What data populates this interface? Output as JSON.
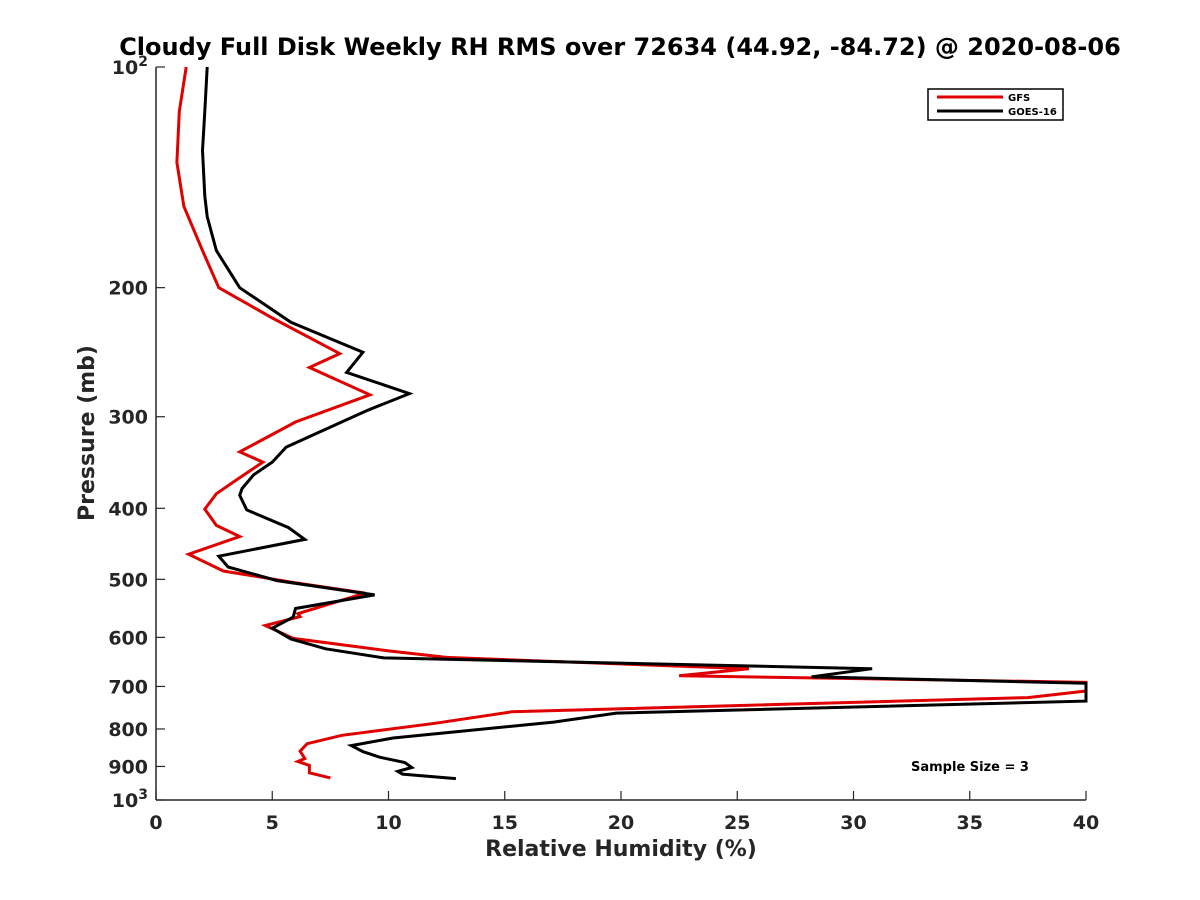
{
  "chart_data": {
    "type": "line",
    "title": "Cloudy Full Disk Weekly RH RMS over 72634 (44.92, -84.72) @ 2020-08-06",
    "xlabel": "Relative Humidity (%)",
    "ylabel": "Pressure (mb)",
    "xlim": [
      0,
      40
    ],
    "ylim": [
      100,
      1000
    ],
    "yscale": "log",
    "y_reversed": true,
    "grid": false,
    "legend_position": "top-right",
    "x_ticks": [
      "0",
      "5",
      "10",
      "15",
      "20",
      "25",
      "30",
      "35",
      "40"
    ],
    "y_ticks": [
      {
        "value": 100,
        "base": "10",
        "exp": "2"
      },
      {
        "value": 200,
        "label": "200"
      },
      {
        "value": 300,
        "label": "300"
      },
      {
        "value": 400,
        "label": "400"
      },
      {
        "value": 500,
        "label": "500"
      },
      {
        "value": 600,
        "label": "600"
      },
      {
        "value": 700,
        "label": "700"
      },
      {
        "value": 800,
        "label": "800"
      },
      {
        "value": 900,
        "label": "900"
      },
      {
        "value": 1000,
        "base": "10",
        "exp": "3"
      }
    ],
    "series": [
      {
        "name": "GFS",
        "color": "#e00000",
        "points": [
          [
            1.3,
            100
          ],
          [
            1.0,
            115
          ],
          [
            0.9,
            135
          ],
          [
            1.2,
            155
          ],
          [
            2.0,
            178
          ],
          [
            2.7,
            200
          ],
          [
            5.0,
            220
          ],
          [
            7.9,
            246
          ],
          [
            6.6,
            257
          ],
          [
            9.2,
            280
          ],
          [
            6.0,
            305
          ],
          [
            3.6,
            335
          ],
          [
            4.6,
            346
          ],
          [
            3.5,
            365
          ],
          [
            2.6,
            382
          ],
          [
            2.1,
            401
          ],
          [
            2.6,
            422
          ],
          [
            3.6,
            437
          ],
          [
            1.4,
            462
          ],
          [
            2.9,
            487
          ],
          [
            5.9,
            505
          ],
          [
            9.0,
            522
          ],
          [
            6.1,
            557
          ],
          [
            6.2,
            562
          ],
          [
            4.7,
            578
          ],
          [
            5.9,
            602
          ],
          [
            10.0,
            626
          ],
          [
            12.5,
            639
          ],
          [
            25.5,
            662
          ],
          [
            22.5,
            677
          ],
          [
            40.0,
            691
          ],
          [
            40.0,
            710
          ],
          [
            37.5,
            725
          ],
          [
            15.3,
            758
          ],
          [
            12.0,
            786
          ],
          [
            8.0,
            816
          ],
          [
            6.5,
            838
          ],
          [
            6.2,
            858
          ],
          [
            6.4,
            878
          ],
          [
            6.1,
            886
          ],
          [
            6.6,
            897
          ],
          [
            6.6,
            918
          ],
          [
            7.5,
            933
          ]
        ]
      },
      {
        "name": "GOES-16",
        "color": "#000000",
        "points": [
          [
            2.2,
            100
          ],
          [
            2.1,
            115
          ],
          [
            2.0,
            130
          ],
          [
            2.1,
            150
          ],
          [
            2.2,
            160
          ],
          [
            2.6,
            178
          ],
          [
            3.6,
            200
          ],
          [
            5.8,
            223
          ],
          [
            8.9,
            245
          ],
          [
            8.2,
            261
          ],
          [
            10.9,
            279
          ],
          [
            9.1,
            294
          ],
          [
            5.6,
            330
          ],
          [
            5.0,
            346
          ],
          [
            4.2,
            360
          ],
          [
            3.7,
            376
          ],
          [
            3.6,
            384
          ],
          [
            3.9,
            402
          ],
          [
            5.7,
            425
          ],
          [
            6.4,
            441
          ],
          [
            2.7,
            465
          ],
          [
            3.1,
            481
          ],
          [
            5.2,
            502
          ],
          [
            9.4,
            525
          ],
          [
            6.0,
            548
          ],
          [
            5.9,
            563
          ],
          [
            5.0,
            583
          ],
          [
            5.8,
            603
          ],
          [
            7.3,
            622
          ],
          [
            9.8,
            640
          ],
          [
            30.8,
            662
          ],
          [
            28.2,
            679
          ],
          [
            40.0,
            693
          ],
          [
            40.0,
            733
          ],
          [
            19.8,
            761
          ],
          [
            17.1,
            783
          ],
          [
            10.2,
            823
          ],
          [
            8.4,
            843
          ],
          [
            8.9,
            859
          ],
          [
            9.6,
            874
          ],
          [
            10.7,
            889
          ],
          [
            11.0,
            903
          ],
          [
            10.4,
            914
          ],
          [
            10.6,
            922
          ],
          [
            12.9,
            935
          ]
        ]
      }
    ],
    "annotations": [
      "Sample Size = 3"
    ]
  }
}
